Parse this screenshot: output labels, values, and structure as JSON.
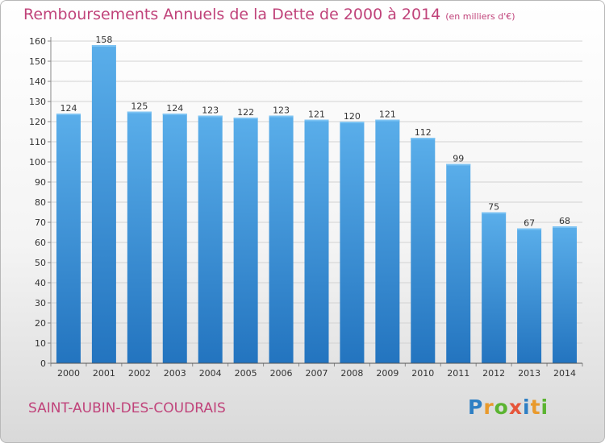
{
  "title": "Remboursements Annuels de la Dette de 2000 à 2014",
  "unit": "(en milliers d'€)",
  "city": "SAINT-AUBIN-DES-COUDRAIS",
  "logo": {
    "letters": [
      "P",
      "r",
      "o",
      "x",
      "i",
      "t",
      "i"
    ],
    "colors": [
      "#2e7fc4",
      "#e99a2c",
      "#5bb431",
      "#e6553a",
      "#2e7fc4",
      "#e99a2c",
      "#5bb431"
    ]
  },
  "chart_data": {
    "type": "bar",
    "categories": [
      "2000",
      "2001",
      "2002",
      "2003",
      "2004",
      "2005",
      "2006",
      "2007",
      "2008",
      "2009",
      "2010",
      "2011",
      "2012",
      "2013",
      "2014"
    ],
    "values": [
      124,
      158,
      125,
      124,
      123,
      122,
      123,
      121,
      120,
      121,
      112,
      99,
      75,
      67,
      68
    ],
    "title": "Remboursements Annuels de la Dette de 2000 à 2014",
    "xlabel": "",
    "ylabel": "",
    "ylim": [
      0,
      160
    ],
    "yticks": [
      0,
      10,
      20,
      30,
      40,
      50,
      60,
      70,
      80,
      90,
      100,
      110,
      120,
      130,
      140,
      150,
      160
    ],
    "grid": true,
    "bar_color": "#3d8fd8"
  }
}
